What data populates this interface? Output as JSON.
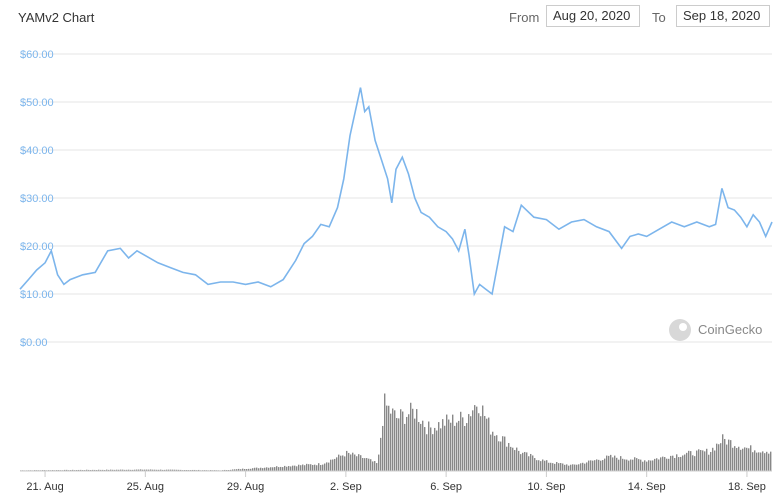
{
  "header": {
    "title": "YAMv2 Chart",
    "from_label": "From",
    "from_value": "Aug 20, 2020",
    "to_label": "To",
    "to_value": "Sep 18, 2020"
  },
  "watermark": {
    "text": "CoinGecko",
    "icon": "gecko-logo-icon"
  },
  "colors": {
    "price_line": "#7cb5ec",
    "volume_bars": "#888888",
    "grid": "#e6e6e6"
  },
  "chart_data": {
    "type": "line",
    "ylim": [
      0,
      60
    ],
    "yticks": [
      {
        "value": 60,
        "label": "$60.00"
      },
      {
        "value": 50,
        "label": "$50.00"
      },
      {
        "value": 40,
        "label": "$40.00"
      },
      {
        "value": 30,
        "label": "$30.00"
      },
      {
        "value": 20,
        "label": "$20.00"
      },
      {
        "value": 10,
        "label": "$10.00"
      },
      {
        "value": 0,
        "label": "$0.00"
      }
    ],
    "xlim": [
      "2020-08-20",
      "2020-09-18"
    ],
    "xticks": [
      {
        "date": "2020-08-21",
        "label": "21. Aug"
      },
      {
        "date": "2020-08-25",
        "label": "25. Aug"
      },
      {
        "date": "2020-08-29",
        "label": "29. Aug"
      },
      {
        "date": "2020-09-02",
        "label": "2. Sep"
      },
      {
        "date": "2020-09-06",
        "label": "6. Sep"
      },
      {
        "date": "2020-09-10",
        "label": "10. Sep"
      },
      {
        "date": "2020-09-14",
        "label": "14. Sep"
      },
      {
        "date": "2020-09-18",
        "label": "18. Sep"
      }
    ],
    "grid": true,
    "price": [
      [
        "2020-08-20T00:00",
        11.0
      ],
      [
        "2020-08-20T08:00",
        13.0
      ],
      [
        "2020-08-20T16:00",
        15.0
      ],
      [
        "2020-08-21T00:00",
        16.5
      ],
      [
        "2020-08-21T06:00",
        19.0
      ],
      [
        "2020-08-21T12:00",
        14.0
      ],
      [
        "2020-08-21T18:00",
        12.0
      ],
      [
        "2020-08-22T00:00",
        13.0
      ],
      [
        "2020-08-22T12:00",
        14.0
      ],
      [
        "2020-08-23T00:00",
        14.5
      ],
      [
        "2020-08-23T12:00",
        19.0
      ],
      [
        "2020-08-24T00:00",
        19.5
      ],
      [
        "2020-08-24T08:00",
        17.5
      ],
      [
        "2020-08-24T16:00",
        19.0
      ],
      [
        "2020-08-25T00:00",
        18.0
      ],
      [
        "2020-08-25T12:00",
        16.5
      ],
      [
        "2020-08-26T00:00",
        15.5
      ],
      [
        "2020-08-26T12:00",
        14.5
      ],
      [
        "2020-08-27T00:00",
        14.0
      ],
      [
        "2020-08-27T12:00",
        12.0
      ],
      [
        "2020-08-28T00:00",
        12.5
      ],
      [
        "2020-08-28T12:00",
        12.5
      ],
      [
        "2020-08-29T00:00",
        12.0
      ],
      [
        "2020-08-29T12:00",
        12.5
      ],
      [
        "2020-08-30T00:00",
        11.5
      ],
      [
        "2020-08-30T12:00",
        13.0
      ],
      [
        "2020-08-31T00:00",
        17.0
      ],
      [
        "2020-08-31T08:00",
        20.5
      ],
      [
        "2020-08-31T16:00",
        22.0
      ],
      [
        "2020-09-01T00:00",
        24.5
      ],
      [
        "2020-09-01T08:00",
        24.0
      ],
      [
        "2020-09-01T16:00",
        28.0
      ],
      [
        "2020-09-01T22:00",
        34.0
      ],
      [
        "2020-09-02T04:00",
        43.0
      ],
      [
        "2020-09-02T10:00",
        49.0
      ],
      [
        "2020-09-02T14:00",
        53.0
      ],
      [
        "2020-09-02T18:00",
        48.0
      ],
      [
        "2020-09-02T22:00",
        49.0
      ],
      [
        "2020-09-03T04:00",
        42.0
      ],
      [
        "2020-09-03T10:00",
        38.0
      ],
      [
        "2020-09-03T16:00",
        34.0
      ],
      [
        "2020-09-03T20:00",
        29.0
      ],
      [
        "2020-09-04T00:00",
        36.0
      ],
      [
        "2020-09-04T06:00",
        38.5
      ],
      [
        "2020-09-04T12:00",
        35.0
      ],
      [
        "2020-09-04T18:00",
        30.0
      ],
      [
        "2020-09-05T00:00",
        27.0
      ],
      [
        "2020-09-05T08:00",
        26.0
      ],
      [
        "2020-09-05T16:00",
        24.0
      ],
      [
        "2020-09-06T00:00",
        23.0
      ],
      [
        "2020-09-06T06:00",
        21.5
      ],
      [
        "2020-09-06T12:00",
        19.0
      ],
      [
        "2020-09-06T18:00",
        23.5
      ],
      [
        "2020-09-06T22:00",
        18.0
      ],
      [
        "2020-09-07T03:00",
        10.0
      ],
      [
        "2020-09-07T08:00",
        12.0
      ],
      [
        "2020-09-07T14:00",
        11.0
      ],
      [
        "2020-09-07T20:00",
        10.0
      ],
      [
        "2020-09-08T02:00",
        17.0
      ],
      [
        "2020-09-08T08:00",
        24.0
      ],
      [
        "2020-09-08T16:00",
        23.0
      ],
      [
        "2020-09-09T00:00",
        28.5
      ],
      [
        "2020-09-09T12:00",
        26.0
      ],
      [
        "2020-09-10T00:00",
        25.5
      ],
      [
        "2020-09-10T12:00",
        23.5
      ],
      [
        "2020-09-11T00:00",
        25.0
      ],
      [
        "2020-09-11T12:00",
        25.5
      ],
      [
        "2020-09-12T00:00",
        24.0
      ],
      [
        "2020-09-12T12:00",
        23.0
      ],
      [
        "2020-09-13T00:00",
        19.5
      ],
      [
        "2020-09-13T08:00",
        22.0
      ],
      [
        "2020-09-13T16:00",
        22.5
      ],
      [
        "2020-09-14T00:00",
        22.0
      ],
      [
        "2020-09-14T12:00",
        23.5
      ],
      [
        "2020-09-15T00:00",
        25.0
      ],
      [
        "2020-09-15T12:00",
        24.0
      ],
      [
        "2020-09-16T00:00",
        25.0
      ],
      [
        "2020-09-16T12:00",
        24.0
      ],
      [
        "2020-09-16T18:00",
        24.5
      ],
      [
        "2020-09-17T00:00",
        32.0
      ],
      [
        "2020-09-17T06:00",
        28.0
      ],
      [
        "2020-09-17T12:00",
        27.5
      ],
      [
        "2020-09-17T18:00",
        26.0
      ],
      [
        "2020-09-18T00:00",
        24.0
      ],
      [
        "2020-09-18T06:00",
        26.5
      ],
      [
        "2020-09-18T12:00",
        25.0
      ],
      [
        "2020-09-18T18:00",
        22.0
      ],
      [
        "2020-09-19T00:00",
        25.0
      ]
    ],
    "volume_profile": [
      [
        "2020-08-20T00:00",
        0.01
      ],
      [
        "2020-08-25T00:00",
        0.02
      ],
      [
        "2020-08-28T00:00",
        0.01
      ],
      [
        "2020-08-31T00:00",
        0.08
      ],
      [
        "2020-09-01T00:00",
        0.1
      ],
      [
        "2020-09-02T00:00",
        0.25
      ],
      [
        "2020-09-02T18:00",
        0.18
      ],
      [
        "2020-09-03T06:00",
        0.1
      ],
      [
        "2020-09-03T12:00",
        0.95
      ],
      [
        "2020-09-04T00:00",
        0.75
      ],
      [
        "2020-09-04T18:00",
        0.85
      ],
      [
        "2020-09-05T06:00",
        0.6
      ],
      [
        "2020-09-06T00:00",
        0.7
      ],
      [
        "2020-09-06T18:00",
        0.75
      ],
      [
        "2020-09-07T06:00",
        1.0
      ],
      [
        "2020-09-07T18:00",
        0.6
      ],
      [
        "2020-09-08T06:00",
        0.45
      ],
      [
        "2020-09-09T00:00",
        0.25
      ],
      [
        "2020-09-10T00:00",
        0.13
      ],
      [
        "2020-09-11T00:00",
        0.08
      ],
      [
        "2020-09-12T12:00",
        0.2
      ],
      [
        "2020-09-14T00:00",
        0.15
      ],
      [
        "2020-09-15T00:00",
        0.22
      ],
      [
        "2020-09-16T12:00",
        0.28
      ],
      [
        "2020-09-17T00:00",
        0.45
      ],
      [
        "2020-09-18T00:00",
        0.32
      ],
      [
        "2020-09-19T00:00",
        0.28
      ]
    ]
  }
}
